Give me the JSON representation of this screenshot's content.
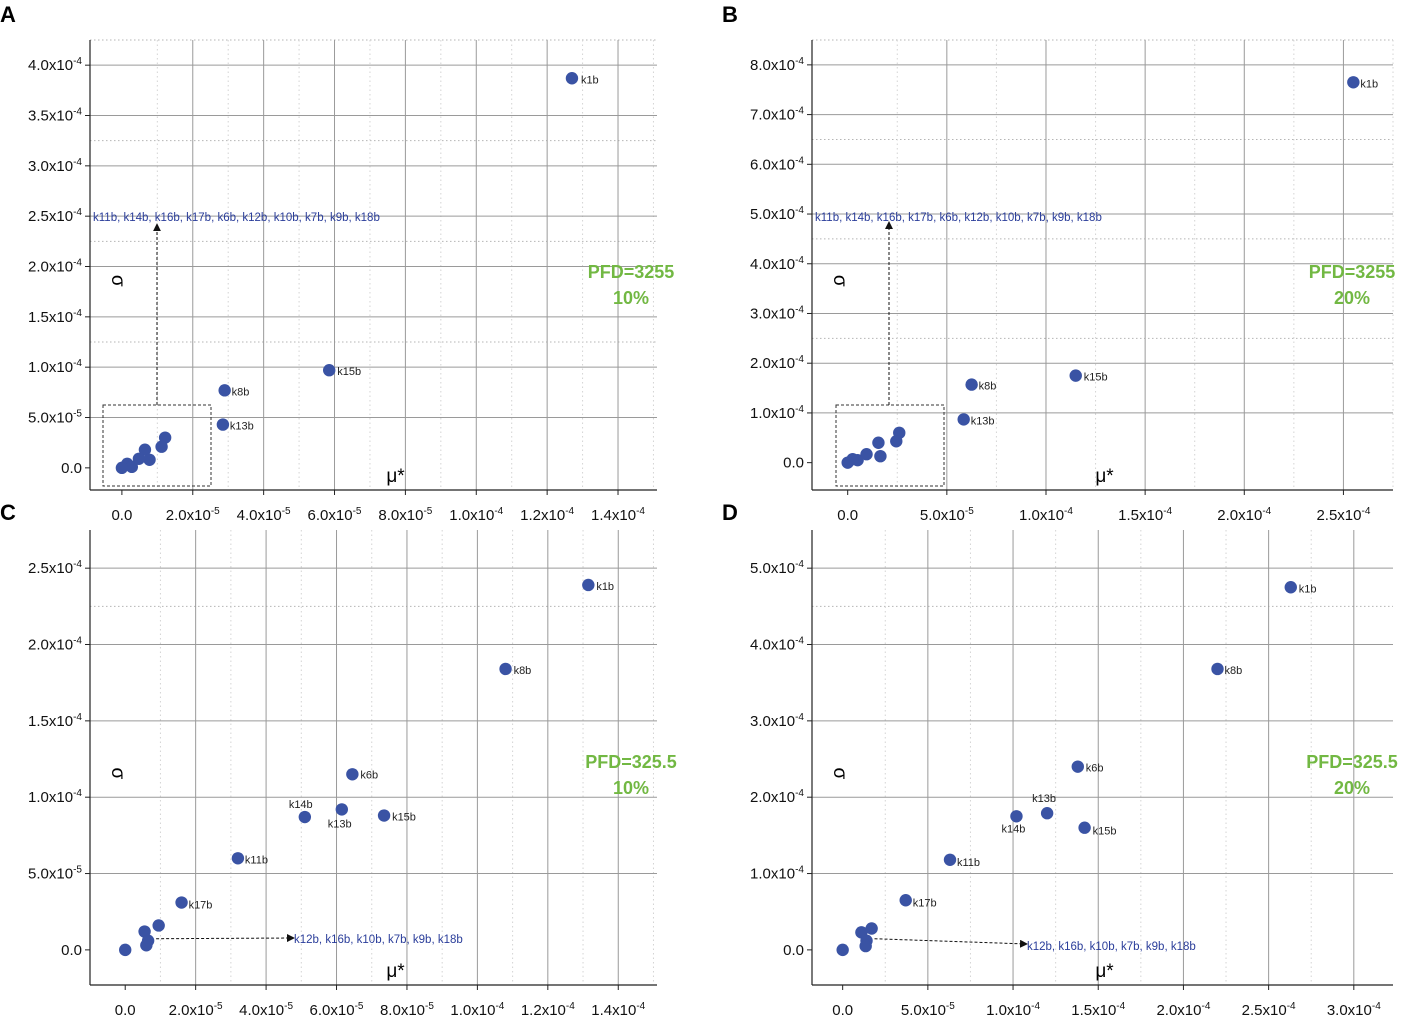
{
  "chart_data": [
    {
      "panel": "A",
      "type": "scatter",
      "xlabel": "μ*",
      "ylabel": "σ",
      "xlim": [
        -9e-06,
        0.000151
      ],
      "ylim": [
        -2.2e-05,
        0.000425
      ],
      "xticks": [
        0,
        2e-05,
        4e-05,
        6e-05,
        8e-05,
        0.0001,
        0.00012,
        0.00014
      ],
      "xtick_labels": [
        "0.0",
        "2.0x10",
        "4.0x10",
        "6.0x10",
        "8.0x10",
        "1.0x10",
        "1.2x10",
        "1.4x10"
      ],
      "xtick_exps": [
        "",
        "-5",
        "-5",
        "-5",
        "-5",
        "-4",
        "-4",
        "-4"
      ],
      "yticks": [
        0,
        5e-05,
        0.0001,
        0.00015,
        0.0002,
        0.00025,
        0.0003,
        0.00035,
        0.0004
      ],
      "ytick_labels": [
        "0.0",
        "5.0x10",
        "1.0x10",
        "1.5x10",
        "2.0x10",
        "2.5x10",
        "3.0x10",
        "3.5x10",
        "4.0x10"
      ],
      "ytick_exps": [
        "",
        "-5",
        "-4",
        "-4",
        "-4",
        "-4",
        "-4",
        "-4",
        "-4"
      ],
      "dotted_y": 0.000125,
      "points": [
        {
          "label": "k1b",
          "x": 0.000127,
          "y": 0.000387
        },
        {
          "label": "k15b",
          "x": 5.85e-05,
          "y": 9.7e-05
        },
        {
          "label": "k8b",
          "x": 2.9e-05,
          "y": 7.7e-05
        },
        {
          "label": "k13b",
          "x": 2.85e-05,
          "y": 4.3e-05
        },
        {
          "label": "",
          "x": 1.22e-05,
          "y": 3e-05
        },
        {
          "label": "",
          "x": 1.12e-05,
          "y": 2.1e-05
        },
        {
          "label": "",
          "x": 6.5e-06,
          "y": 1.8e-05
        },
        {
          "label": "",
          "x": 7.8e-06,
          "y": 8e-06
        },
        {
          "label": "",
          "x": 4.8e-06,
          "y": 9e-06
        },
        {
          "label": "",
          "x": 1.5e-06,
          "y": 4e-06
        },
        {
          "label": "",
          "x": 2.8e-06,
          "y": 1e-06
        },
        {
          "label": "",
          "x": 0,
          "y": 0
        }
      ],
      "group_label": "k11b, k14b, k16b, k17b, k6b, k12b, k10b, k7b, k9b, k18b",
      "annotation": [
        "PFD=3255",
        "10%"
      ]
    },
    {
      "panel": "B",
      "type": "scatter",
      "xlabel": "μ*",
      "ylabel": "σ",
      "xlim": [
        -1.8e-05,
        0.000275
      ],
      "ylim": [
        -5.5e-05,
        0.00085
      ],
      "xticks": [
        0,
        5e-05,
        0.0001,
        0.00015,
        0.0002,
        0.00025
      ],
      "xtick_labels": [
        "0.0",
        "5.0x10",
        "1.0x10",
        "1.5x10",
        "2.0x10",
        "2.5x10"
      ],
      "xtick_exps": [
        "",
        "-5",
        "-4",
        "-4",
        "-4",
        "-4"
      ],
      "yticks": [
        0,
        0.0001,
        0.0002,
        0.0003,
        0.0004,
        0.0005,
        0.0006,
        0.0007,
        0.0008
      ],
      "ytick_labels": [
        "0.0",
        "1.0x10",
        "2.0x10",
        "3.0x10",
        "4.0x10",
        "5.0x10",
        "6.0x10",
        "7.0x10",
        "8.0x10"
      ],
      "ytick_exps": [
        "",
        "-4",
        "-4",
        "-4",
        "-4",
        "-4",
        "-4",
        "-4",
        "-4"
      ],
      "dotted_y": 0.00025,
      "points": [
        {
          "label": "k1b",
          "x": 0.000255,
          "y": 0.000765
        },
        {
          "label": "k15b",
          "x": 0.000115,
          "y": 0.000175
        },
        {
          "label": "k8b",
          "x": 6.25e-05,
          "y": 0.000157
        },
        {
          "label": "k13b",
          "x": 5.85e-05,
          "y": 8.7e-05
        },
        {
          "label": "",
          "x": 2.6e-05,
          "y": 6e-05
        },
        {
          "label": "",
          "x": 2.45e-05,
          "y": 4.3e-05
        },
        {
          "label": "",
          "x": 1.55e-05,
          "y": 4e-05
        },
        {
          "label": "",
          "x": 1.65e-05,
          "y": 1.3e-05
        },
        {
          "label": "",
          "x": 9.5e-06,
          "y": 1.7e-05
        },
        {
          "label": "",
          "x": 5e-06,
          "y": 5e-06
        },
        {
          "label": "",
          "x": 2.5e-06,
          "y": 7e-06
        },
        {
          "label": "",
          "x": 0,
          "y": 0
        }
      ],
      "group_label": "k11b, k14b, k16b, k17b, k6b, k12b, k10b, k7b, k9b, k18b",
      "annotation": [
        "PFD=3255",
        "20%"
      ]
    },
    {
      "panel": "C",
      "type": "scatter",
      "xlabel": "μ*",
      "ylabel": "σ",
      "xlim": [
        -1e-05,
        0.000151
      ],
      "ylim": [
        -2.3e-05,
        0.000275
      ],
      "xticks": [
        0,
        2e-05,
        4e-05,
        6e-05,
        8e-05,
        0.0001,
        0.00012,
        0.00014
      ],
      "xtick_labels": [
        "0.0",
        "2.0x10",
        "4.0x10",
        "6.0x10",
        "8.0x10",
        "1.0x10",
        "1.2x10",
        "1.4x10"
      ],
      "xtick_exps": [
        "",
        "-5",
        "-5",
        "-5",
        "-5",
        "-4",
        "-4",
        "-4"
      ],
      "yticks": [
        0,
        5e-05,
        0.0001,
        0.00015,
        0.0002,
        0.00025
      ],
      "ytick_labels": [
        "0.0",
        "5.0x10",
        "1.0x10",
        "1.5x10",
        "2.0x10",
        "2.5x10"
      ],
      "ytick_exps": [
        "",
        "-5",
        "-4",
        "-4",
        "-4",
        "-4"
      ],
      "dotted_y": 0.000225,
      "points": [
        {
          "label": "k1b",
          "x": 0.0001315,
          "y": 0.000239
        },
        {
          "label": "k8b",
          "x": 0.000108,
          "y": 0.000184
        },
        {
          "label": "k6b",
          "x": 6.45e-05,
          "y": 0.000115
        },
        {
          "label": "k13b",
          "x": 6.15e-05,
          "y": 9.2e-05
        },
        {
          "label": "k14b",
          "x": 5.1e-05,
          "y": 8.7e-05
        },
        {
          "label": "k15b",
          "x": 7.35e-05,
          "y": 8.8e-05
        },
        {
          "label": "k11b",
          "x": 3.2e-05,
          "y": 6e-05
        },
        {
          "label": "k17b",
          "x": 1.6e-05,
          "y": 3.1e-05
        },
        {
          "label": "",
          "x": 9.5e-06,
          "y": 1.6e-05
        },
        {
          "label": "",
          "x": 5.5e-06,
          "y": 1.2e-05
        },
        {
          "label": "",
          "x": 6.5e-06,
          "y": 6e-06
        },
        {
          "label": "",
          "x": 6e-06,
          "y": 3e-06
        },
        {
          "label": "",
          "x": 0,
          "y": 0
        }
      ],
      "group_label": "k12b, k16b, k10b, k7b, k9b, k18b",
      "annotation": [
        "PFD=325.5",
        "10%"
      ]
    },
    {
      "panel": "D",
      "type": "scatter",
      "xlabel": "μ*",
      "ylabel": "σ",
      "xlim": [
        -1.8e-05,
        0.000323
      ],
      "ylim": [
        -4.6e-05,
        0.00055
      ],
      "xticks": [
        0,
        5e-05,
        0.0001,
        0.00015,
        0.0002,
        0.00025,
        0.0003
      ],
      "xtick_labels": [
        "0.0",
        "5.0x10",
        "1.0x10",
        "1.5x10",
        "2.0x10",
        "2.5x10",
        "3.0x10"
      ],
      "xtick_exps": [
        "",
        "-5",
        "-4",
        "-4",
        "-4",
        "-4",
        "-4"
      ],
      "yticks": [
        0,
        0.0001,
        0.0002,
        0.0003,
        0.0004,
        0.0005
      ],
      "ytick_labels": [
        "0.0",
        "1.0x10",
        "2.0x10",
        "3.0x10",
        "4.0x10",
        "5.0x10"
      ],
      "ytick_exps": [
        "",
        "-4",
        "-4",
        "-4",
        "-4",
        "-4"
      ],
      "dotted_y": 0.00045,
      "points": [
        {
          "label": "k1b",
          "x": 0.000263,
          "y": 0.000475
        },
        {
          "label": "k8b",
          "x": 0.00022,
          "y": 0.000368
        },
        {
          "label": "k6b",
          "x": 0.000138,
          "y": 0.00024
        },
        {
          "label": "k13b",
          "x": 0.00012,
          "y": 0.000179
        },
        {
          "label": "k14b",
          "x": 0.000102,
          "y": 0.000175
        },
        {
          "label": "k15b",
          "x": 0.000142,
          "y": 0.00016
        },
        {
          "label": "k11b",
          "x": 6.3e-05,
          "y": 0.000118
        },
        {
          "label": "k17b",
          "x": 3.7e-05,
          "y": 6.5e-05
        },
        {
          "label": "",
          "x": 1.7e-05,
          "y": 2.8e-05
        },
        {
          "label": "",
          "x": 1.1e-05,
          "y": 2.3e-05
        },
        {
          "label": "",
          "x": 1.4e-05,
          "y": 1.2e-05
        },
        {
          "label": "",
          "x": 1.35e-05,
          "y": 5e-06
        },
        {
          "label": "",
          "x": 0,
          "y": 0
        }
      ],
      "group_label": "k12b, k16b, k10b, k7b, k9b, k18b",
      "annotation": [
        "PFD=325.5",
        "20%"
      ]
    }
  ],
  "colors": {
    "point": "#3a53a4",
    "group_label": "#2a3d9a",
    "annotation": "#72b843",
    "grid": "#9a9a9a",
    "dotted": "#b5b5b5"
  }
}
